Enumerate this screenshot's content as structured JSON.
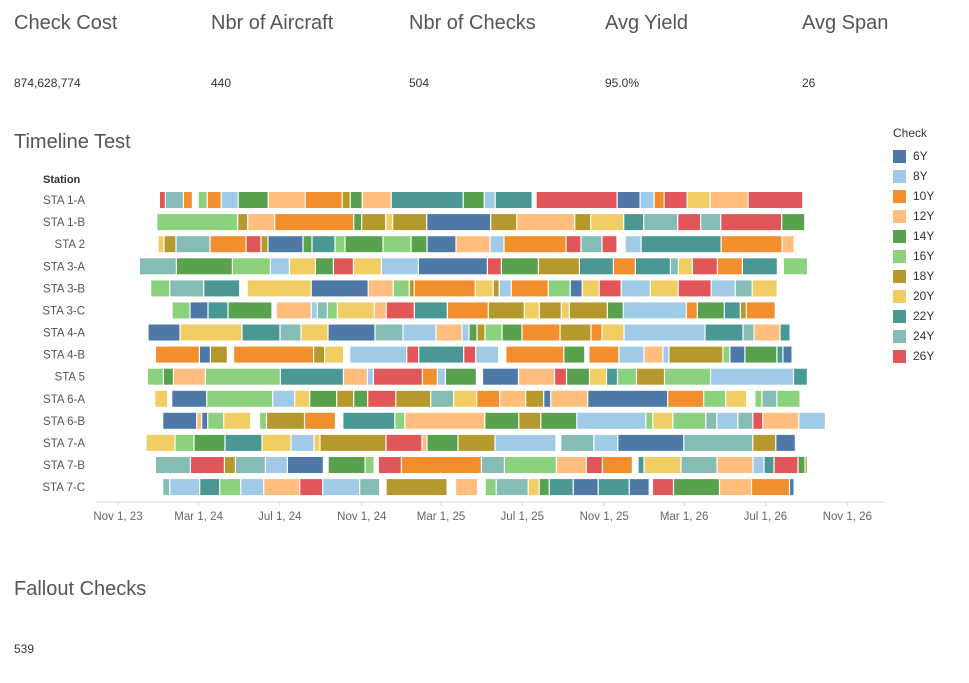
{
  "kpis": [
    {
      "title": "Check Cost",
      "value": "874,628,774"
    },
    {
      "title": "Nbr of Aircraft",
      "value": "440"
    },
    {
      "title": "Nbr of Checks",
      "value": "504"
    },
    {
      "title": "Avg Yield",
      "value": "95.0%"
    },
    {
      "title": "Avg Span",
      "value": "26"
    }
  ],
  "timeline_title": "Timeline Test",
  "fallout": {
    "title": "Fallout Checks",
    "value": "539"
  },
  "legend": {
    "title": "Check",
    "items": [
      {
        "label": "6Y",
        "color": "#4e79a7"
      },
      {
        "label": "8Y",
        "color": "#a0cbe8"
      },
      {
        "label": "10Y",
        "color": "#f28e2b"
      },
      {
        "label": "12Y",
        "color": "#ffbe7d"
      },
      {
        "label": "14Y",
        "color": "#59a14f"
      },
      {
        "label": "16Y",
        "color": "#8cd17d"
      },
      {
        "label": "18Y",
        "color": "#b6992d"
      },
      {
        "label": "20Y",
        "color": "#f1ce63"
      },
      {
        "label": "22Y",
        "color": "#499894"
      },
      {
        "label": "24Y",
        "color": "#86bcb6"
      },
      {
        "label": "26Y",
        "color": "#e15759"
      }
    ]
  },
  "chart_data": {
    "type": "gantt",
    "title": "Timeline Test",
    "ylabel": "Station",
    "x_range_days": [
      0,
      1096
    ],
    "x_ticks": [
      {
        "label": "Nov 1, 23",
        "day": 0
      },
      {
        "label": "Mar 1, 24",
        "day": 121
      },
      {
        "label": "Jul 1, 24",
        "day": 243
      },
      {
        "label": "Nov 1, 24",
        "day": 366
      },
      {
        "label": "Mar 1, 25",
        "day": 485
      },
      {
        "label": "Jul 1, 25",
        "day": 607
      },
      {
        "label": "Nov 1, 25",
        "day": 730
      },
      {
        "label": "Mar 1, 26",
        "day": 850
      },
      {
        "label": "Jul 1, 26",
        "day": 972
      },
      {
        "label": "Nov 1, 26",
        "day": 1095
      }
    ],
    "stations": [
      {
        "name": "STA 1-A",
        "start": 63,
        "end": 1029
      },
      {
        "name": "STA 1-B",
        "start": 59,
        "end": 1032
      },
      {
        "name": "STA 2",
        "start": 61,
        "end": 1016
      },
      {
        "name": "STA 3-A",
        "start": 33,
        "end": 1036
      },
      {
        "name": "STA 3-B",
        "start": 50,
        "end": 1001
      },
      {
        "name": "STA 3-C",
        "start": 82,
        "end": 1002
      },
      {
        "name": "STA 4-A",
        "start": 46,
        "end": 1010
      },
      {
        "name": "STA 4-B",
        "start": 57,
        "end": 1013
      },
      {
        "name": "STA 5",
        "start": 45,
        "end": 1036
      },
      {
        "name": "STA 6-A",
        "start": 56,
        "end": 1025
      },
      {
        "name": "STA 6-B",
        "start": 68,
        "end": 1063
      },
      {
        "name": "STA 7-A",
        "start": 43,
        "end": 1018
      },
      {
        "name": "STA 7-B",
        "start": 57,
        "end": 1036
      },
      {
        "name": "STA 7-C",
        "start": 68,
        "end": 1016
      }
    ]
  }
}
